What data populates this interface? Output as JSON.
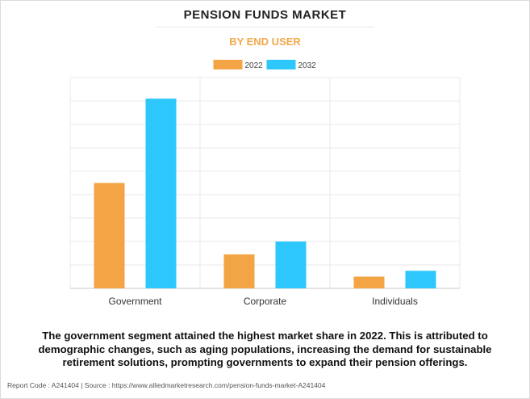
{
  "chart_data": {
    "type": "bar",
    "title": "PENSION FUNDS MARKET",
    "subtitle": "BY END USER",
    "categories": [
      "Government",
      "Corporate",
      "Individuals"
    ],
    "series": [
      {
        "name": "2022",
        "color": "#f3a445",
        "values": [
          4.5,
          1.45,
          0.5
        ]
      },
      {
        "name": "2032",
        "color": "#2ec7fb",
        "values": [
          8.1,
          2.0,
          0.75
        ]
      }
    ],
    "ylim": [
      0,
      9
    ],
    "grid": true,
    "legend": "top-center",
    "axis_tick_labels_shown": false
  },
  "caption": "The government segment attained the highest market share in 2022. This is attributed to demographic changes, such as aging populations, increasing the demand for sustainable retirement solutions, prompting governments to expand their pension offerings.",
  "footer": "Report Code : A241404  |  Source : https://www.alliedmarketresearch.com/pension-funds-market-A241404"
}
